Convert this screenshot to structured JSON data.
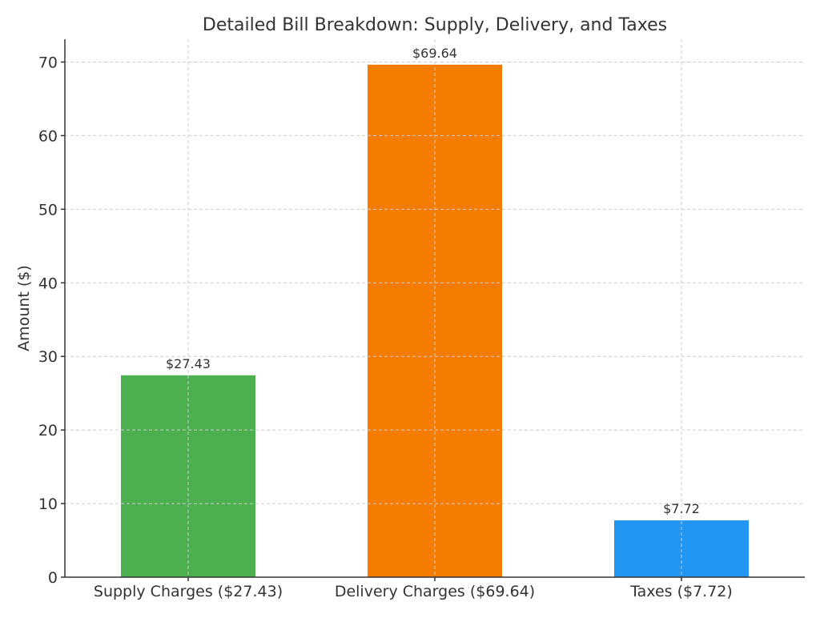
{
  "chart_data": {
    "type": "bar",
    "title": "Detailed Bill Breakdown: Supply, Delivery, and Taxes",
    "xlabel": "",
    "ylabel": "Amount ($)",
    "categories": [
      "Supply Charges ($27.43)",
      "Delivery Charges ($69.64)",
      "Taxes ($7.72)"
    ],
    "values": [
      27.43,
      69.64,
      7.72
    ],
    "data_labels": [
      "$27.43",
      "$69.64",
      "$7.72"
    ],
    "colors": [
      "#4CAF50",
      "#F57C00",
      "#2196F3"
    ],
    "ylim": [
      0,
      73.1
    ],
    "yticks": [
      0,
      10,
      20,
      30,
      40,
      50,
      60,
      70
    ],
    "grid": true
  }
}
